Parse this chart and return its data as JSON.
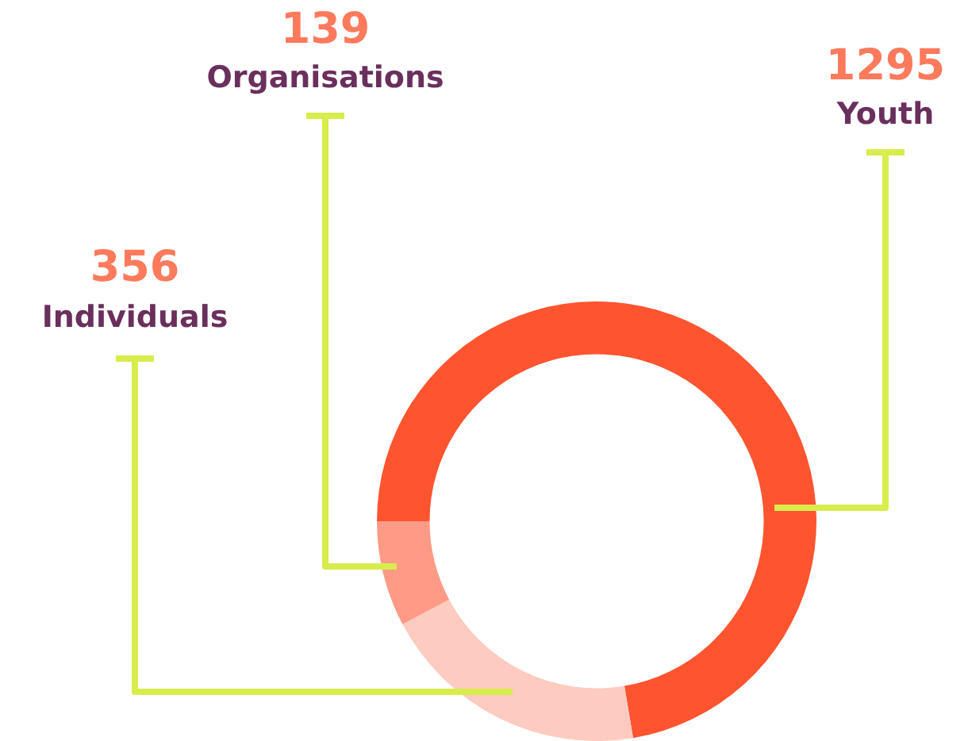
{
  "chart_data": {
    "type": "donut",
    "categories": [
      "Youth",
      "Individuals",
      "Organisations"
    ],
    "values": [
      1295,
      356,
      139
    ],
    "colors": [
      "#fe5430",
      "#fecbc0",
      "#fe9a86"
    ],
    "data_labels": true,
    "legend": false
  }
}
